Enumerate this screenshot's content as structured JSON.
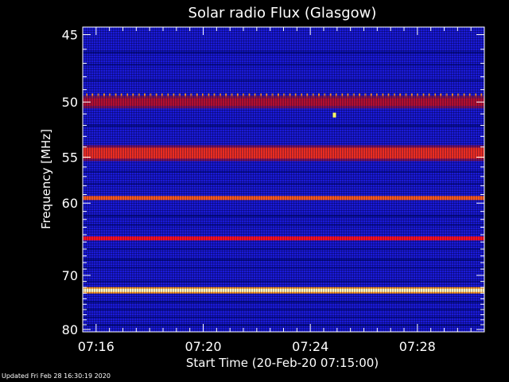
{
  "chart_data": {
    "type": "heatmap",
    "title": "Solar radio Flux (Glasgow)",
    "xlabel": "Start Time (20-Feb-20 07:15:00)",
    "ylabel": "Frequency [MHz]",
    "x_range_minutes": [
      7.5,
      22.5
    ],
    "y_range_mhz": [
      44.5,
      80.5
    ],
    "x_ticks": [
      {
        "label": "07:16",
        "minute": 8.0
      },
      {
        "label": "07:20",
        "minute": 12.0
      },
      {
        "label": "07:24",
        "minute": 16.0
      },
      {
        "label": "07:28",
        "minute": 20.0
      }
    ],
    "y_ticks": [
      {
        "label": "45",
        "mhz": 45
      },
      {
        "label": "50",
        "mhz": 50
      },
      {
        "label": "55",
        "mhz": 55
      },
      {
        "label": "60",
        "mhz": 60
      },
      {
        "label": "70",
        "mhz": 70
      },
      {
        "label": "80",
        "mhz": 80
      }
    ],
    "y_scale": "reciprocal",
    "background_color": "#1a1ad8",
    "bands": [
      {
        "mhz": 49.5,
        "color": "#ff8c2a",
        "kind": "dotted-line"
      },
      {
        "mhz": 50.0,
        "color": "#c01020",
        "kind": "wide-band"
      },
      {
        "mhz": 54.6,
        "color": "#ff3010",
        "kind": "wide-band"
      },
      {
        "mhz": 59.4,
        "color": "#ff5a1a",
        "kind": "line"
      },
      {
        "mhz": 64.5,
        "color": "#ff1020",
        "kind": "line"
      },
      {
        "mhz": 72.5,
        "color": "#fff4c0",
        "kind": "bright-line"
      }
    ],
    "spot": {
      "minute": 16.9,
      "mhz": 51.1,
      "color": "#ffff60"
    }
  },
  "footer": "Updated Fri Feb 28 16:30:19 2020"
}
